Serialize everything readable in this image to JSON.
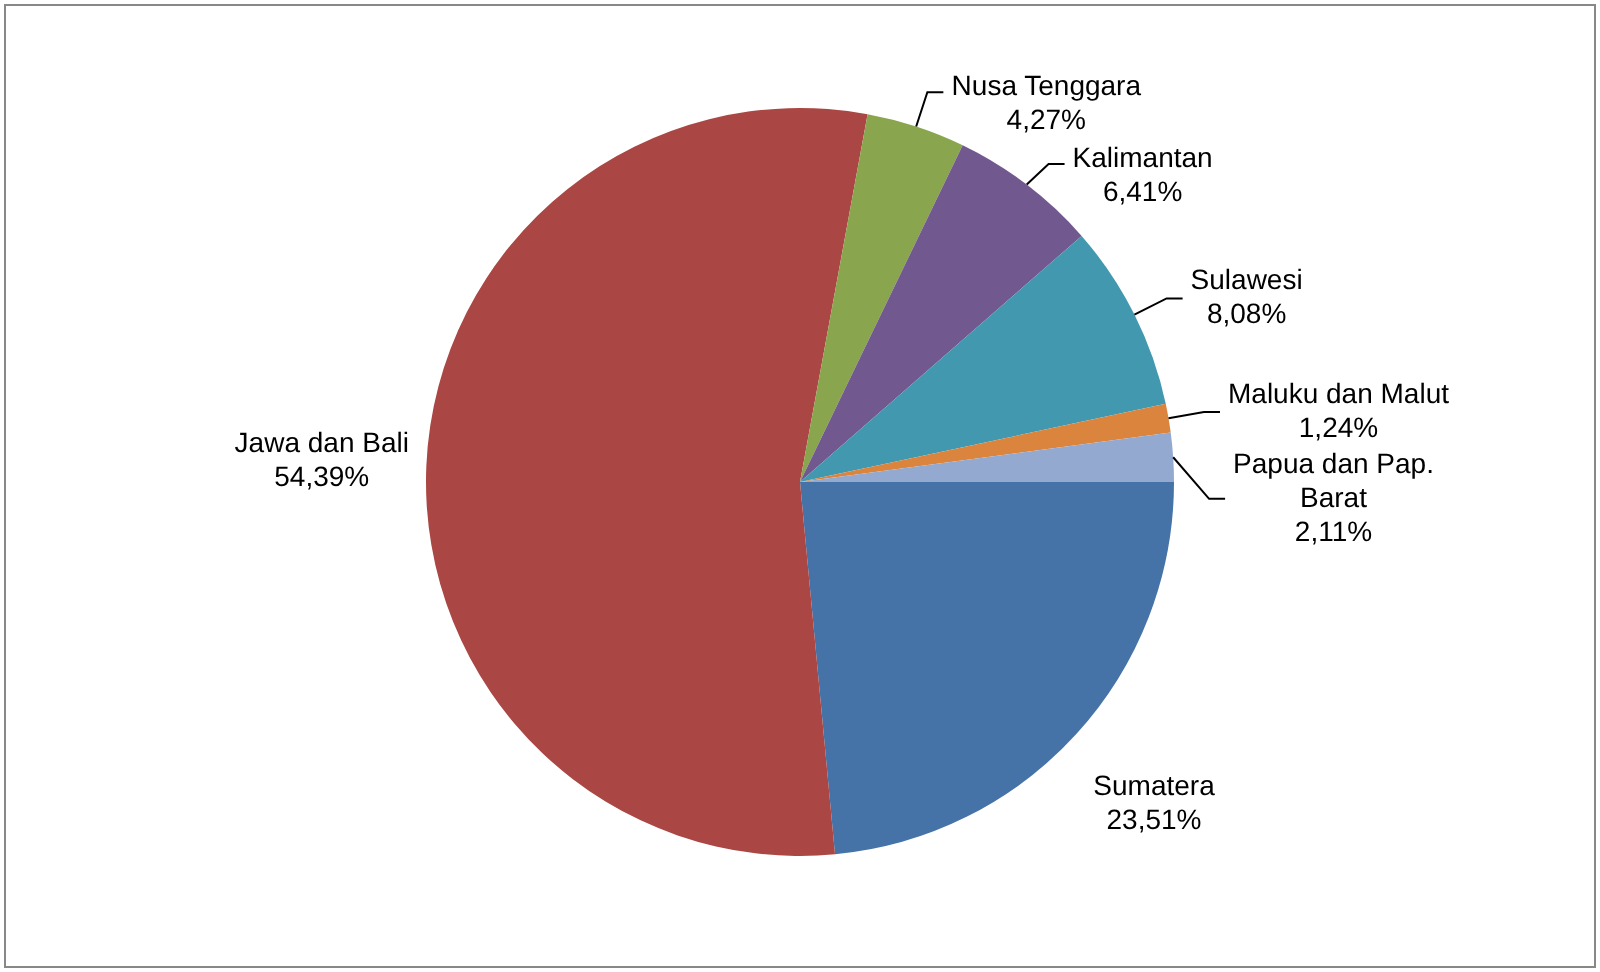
{
  "chart_data": {
    "type": "pie",
    "categories": [
      "Sumatera",
      "Jawa dan Bali",
      "Nusa Tenggara",
      "Kalimantan",
      "Sulawesi",
      "Maluku dan Malut",
      "Papua dan Pap. Barat"
    ],
    "values": [
      23.51,
      54.39,
      4.27,
      6.41,
      8.08,
      1.24,
      2.11
    ],
    "value_labels": [
      "23,51%",
      "54,39%",
      "4,27%",
      "6,41%",
      "8,08%",
      "1,24%",
      "2,11%"
    ],
    "colors": [
      "#4572a7",
      "#aa4643",
      "#89a54e",
      "#71588f",
      "#4198af",
      "#db843d",
      "#93a9cf"
    ],
    "legend": false
  }
}
